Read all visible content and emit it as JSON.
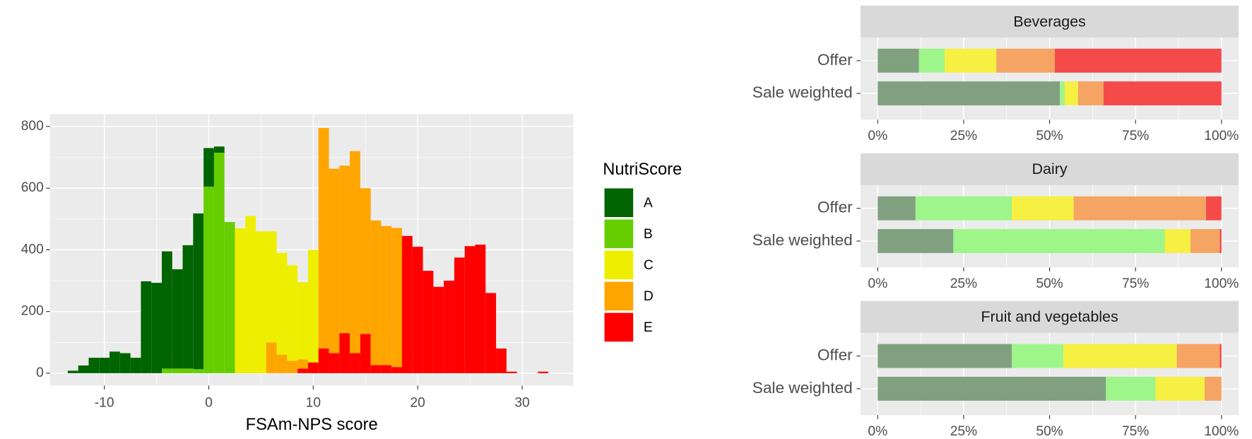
{
  "chart_data": [
    {
      "type": "histogram",
      "x_label": "FSAm-NPS score",
      "legend_title": "NutriScore",
      "bins": [
        -13.5,
        -12.5,
        -11.5,
        -10.5,
        -9.5,
        -8.5,
        -7.5,
        -6.5,
        -5.5,
        -4.5,
        -3.5,
        -2.5,
        -1.5,
        -0.5,
        0.5,
        1.5,
        2.5,
        3.5,
        4.5,
        5.5,
        6.5,
        7.5,
        8.5,
        9.5,
        10.5,
        11.5,
        12.5,
        13.5,
        14.5,
        15.5,
        16.5,
        17.5,
        18.5,
        19.5,
        20.5,
        21.5,
        22.5,
        23.5,
        24.5,
        25.5,
        26.5,
        27.5,
        28.5,
        29.5,
        30.5,
        31.5,
        32.5
      ],
      "series": [
        {
          "name": "A",
          "color": "#006400",
          "values": [
            8,
            25,
            50,
            50,
            70,
            65,
            50,
            298,
            293,
            380,
            322,
            400,
            505,
            125,
            20,
            0,
            0,
            0,
            0,
            0,
            0,
            0,
            0,
            0,
            0,
            0,
            0,
            0,
            0,
            0,
            0,
            0,
            0,
            0,
            0,
            0,
            0,
            0,
            0,
            0,
            0,
            0,
            0,
            0,
            0,
            0
          ]
        },
        {
          "name": "B",
          "color": "#66cd00",
          "values": [
            0,
            0,
            0,
            0,
            0,
            0,
            0,
            0,
            0,
            15,
            15,
            15,
            13,
            605,
            715,
            490,
            0,
            0,
            0,
            0,
            0,
            0,
            0,
            0,
            0,
            0,
            0,
            0,
            0,
            0,
            0,
            0,
            0,
            0,
            0,
            0,
            0,
            0,
            0,
            0,
            0,
            0,
            0,
            0,
            0,
            0
          ]
        },
        {
          "name": "C",
          "color": "#eeee00",
          "values": [
            0,
            0,
            0,
            0,
            0,
            0,
            0,
            0,
            0,
            0,
            0,
            0,
            0,
            0,
            0,
            0,
            470,
            510,
            460,
            360,
            330,
            310,
            250,
            365,
            0,
            0,
            0,
            0,
            0,
            0,
            0,
            0,
            0,
            0,
            0,
            0,
            0,
            0,
            0,
            0,
            0,
            0,
            0,
            0,
            0,
            0
          ]
        },
        {
          "name": "D",
          "color": "#ffa500",
          "values": [
            0,
            0,
            0,
            0,
            0,
            0,
            0,
            0,
            0,
            0,
            0,
            0,
            0,
            0,
            0,
            0,
            0,
            0,
            0,
            100,
            60,
            40,
            30,
            0,
            715,
            598,
            543,
            655,
            473,
            469,
            451,
            451,
            0,
            0,
            0,
            0,
            0,
            0,
            0,
            0,
            0,
            0,
            0,
            0,
            0,
            0
          ]
        },
        {
          "name": "E",
          "color": "#ff0000",
          "values": [
            0,
            0,
            0,
            0,
            0,
            0,
            0,
            0,
            0,
            0,
            0,
            0,
            0,
            0,
            0,
            0,
            0,
            0,
            0,
            0,
            0,
            0,
            15,
            35,
            80,
            65,
            130,
            65,
            127,
            26,
            26,
            20,
            445,
            410,
            332,
            280,
            300,
            375,
            412,
            417,
            260,
            80,
            5,
            0,
            0,
            5
          ]
        }
      ],
      "xlim": [
        -15.2,
        34.9
      ],
      "xticks": [
        -10,
        0,
        10,
        20,
        30
      ],
      "ylim": [
        -40,
        840
      ],
      "yticks": [
        0,
        200,
        400,
        600,
        800
      ],
      "grid": true
    },
    {
      "type": "bar",
      "orientation": "horizontal",
      "stacked": true,
      "title": "Beverages",
      "categories": [
        "Offer",
        "Sale weighted"
      ],
      "series": [
        {
          "color": "#80a080",
          "values": [
            12,
            53
          ]
        },
        {
          "color": "#9ef58a",
          "values": [
            7.5,
            1.4
          ]
        },
        {
          "color": "#f5f042",
          "values": [
            15,
            3.9
          ]
        },
        {
          "color": "#f5a463",
          "values": [
            17,
            7.4
          ]
        },
        {
          "color": "#f54a4a",
          "values": [
            48.5,
            34.3
          ]
        }
      ],
      "xlim": [
        -5,
        105
      ],
      "xticks": [
        {
          "value": 0,
          "label": "0%"
        },
        {
          "value": 25,
          "label": "25%"
        },
        {
          "value": 50,
          "label": "50%"
        },
        {
          "value": 75,
          "label": "75%"
        },
        {
          "value": 100,
          "label": "100%"
        }
      ],
      "grid": true
    },
    {
      "type": "bar",
      "orientation": "horizontal",
      "stacked": true,
      "title": "Dairy",
      "categories": [
        "Offer",
        "Sale weighted"
      ],
      "series": [
        {
          "color": "#80a080",
          "values": [
            11,
            22
          ]
        },
        {
          "color": "#9ef58a",
          "values": [
            28,
            61.5
          ]
        },
        {
          "color": "#f5f042",
          "values": [
            18,
            7.5
          ]
        },
        {
          "color": "#f5a463",
          "values": [
            38.5,
            8.5
          ]
        },
        {
          "color": "#f54a4a",
          "values": [
            4.5,
            0.5
          ]
        }
      ],
      "xlim": [
        -5,
        105
      ],
      "xticks": [
        {
          "value": 0,
          "label": "0%"
        },
        {
          "value": 25,
          "label": "25%"
        },
        {
          "value": 50,
          "label": "50%"
        },
        {
          "value": 75,
          "label": "75%"
        },
        {
          "value": 100,
          "label": "100%"
        }
      ],
      "grid": true
    },
    {
      "type": "bar",
      "orientation": "horizontal",
      "stacked": true,
      "title": "Fruit and vegetables",
      "categories": [
        "Offer",
        "Sale weighted"
      ],
      "series": [
        {
          "color": "#80a080",
          "values": [
            39,
            66.4
          ]
        },
        {
          "color": "#9ef58a",
          "values": [
            15,
            14.4
          ]
        },
        {
          "color": "#f5f042",
          "values": [
            33,
            14.3
          ]
        },
        {
          "color": "#f5a463",
          "values": [
            12.5,
            4.9
          ]
        },
        {
          "color": "#f54a4a",
          "values": [
            0.5,
            0
          ]
        }
      ],
      "xlim": [
        -5,
        105
      ],
      "xticks": [
        {
          "value": 0,
          "label": "0%"
        },
        {
          "value": 25,
          "label": "25%"
        },
        {
          "value": 50,
          "label": "50%"
        },
        {
          "value": 75,
          "label": "75%"
        },
        {
          "value": 100,
          "label": "100%"
        }
      ],
      "grid": true
    }
  ]
}
